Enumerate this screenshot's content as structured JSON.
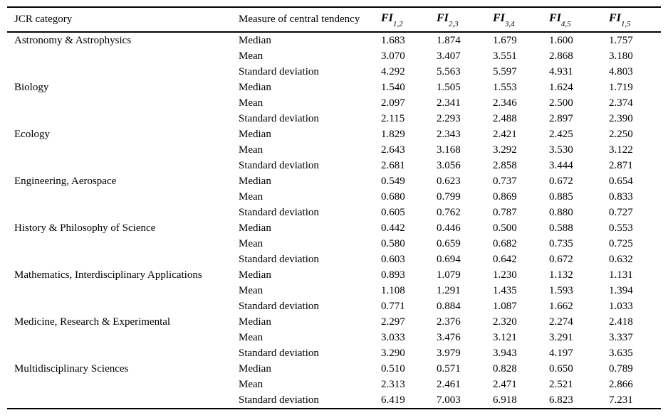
{
  "table": {
    "header": {
      "category_label": "JCR category",
      "measure_label": "Measure of central tendency",
      "fi_columns": [
        {
          "base": "FI",
          "sub": "1,2"
        },
        {
          "base": "FI",
          "sub": "2,3"
        },
        {
          "base": "FI",
          "sub": "3,4"
        },
        {
          "base": "FI",
          "sub": "4,5"
        },
        {
          "base": "FI",
          "sub": "1,5"
        }
      ]
    },
    "measures": [
      "Median",
      "Mean",
      "Standard deviation"
    ],
    "groups": [
      {
        "category": "Astronomy & Astrophysics",
        "rows": [
          [
            "1.683",
            "1.874",
            "1.679",
            "1.600",
            "1.757"
          ],
          [
            "3.070",
            "3.407",
            "3.551",
            "2.868",
            "3.180"
          ],
          [
            "4.292",
            "5.563",
            "5.597",
            "4.931",
            "4.803"
          ]
        ]
      },
      {
        "category": "Biology",
        "rows": [
          [
            "1.540",
            "1.505",
            "1.553",
            "1.624",
            "1.719"
          ],
          [
            "2.097",
            "2.341",
            "2.346",
            "2.500",
            "2.374"
          ],
          [
            "2.115",
            "2.293",
            "2.488",
            "2.897",
            "2.390"
          ]
        ]
      },
      {
        "category": "Ecology",
        "rows": [
          [
            "1.829",
            "2.343",
            "2.421",
            "2.425",
            "2.250"
          ],
          [
            "2.643",
            "3.168",
            "3.292",
            "3.530",
            "3.122"
          ],
          [
            "2.681",
            "3.056",
            "2.858",
            "3.444",
            "2.871"
          ]
        ]
      },
      {
        "category": "Engineering, Aerospace",
        "rows": [
          [
            "0.549",
            "0.623",
            "0.737",
            "0.672",
            "0.654"
          ],
          [
            "0.680",
            "0.799",
            "0.869",
            "0.885",
            "0.833"
          ],
          [
            "0.605",
            "0.762",
            "0.787",
            "0.880",
            "0.727"
          ]
        ]
      },
      {
        "category": "History & Philosophy of Science",
        "rows": [
          [
            "0.442",
            "0.446",
            "0.500",
            "0.588",
            "0.553"
          ],
          [
            "0.580",
            "0.659",
            "0.682",
            "0.735",
            "0.725"
          ],
          [
            "0.603",
            "0.694",
            "0.642",
            "0.672",
            "0.632"
          ]
        ]
      },
      {
        "category": "Mathematics, Interdisciplinary Applications",
        "rows": [
          [
            "0.893",
            "1.079",
            "1.230",
            "1.132",
            "1.131"
          ],
          [
            "1.108",
            "1.291",
            "1.435",
            "1.593",
            "1.394"
          ],
          [
            "0.771",
            "0.884",
            "1.087",
            "1.662",
            "1.033"
          ]
        ]
      },
      {
        "category": "Medicine, Research & Experimental",
        "rows": [
          [
            "2.297",
            "2.376",
            "2.320",
            "2.274",
            "2.418"
          ],
          [
            "3.033",
            "3.476",
            "3.121",
            "3.291",
            "3.337"
          ],
          [
            "3.290",
            "3.979",
            "3.943",
            "4.197",
            "3.635"
          ]
        ]
      },
      {
        "category": "Multidisciplinary Sciences",
        "rows": [
          [
            "0.510",
            "0.571",
            "0.828",
            "0.650",
            "0.789"
          ],
          [
            "2.313",
            "2.461",
            "2.471",
            "2.521",
            "2.866"
          ],
          [
            "6.419",
            "7.003",
            "6.918",
            "6.823",
            "7.231"
          ]
        ]
      }
    ]
  }
}
